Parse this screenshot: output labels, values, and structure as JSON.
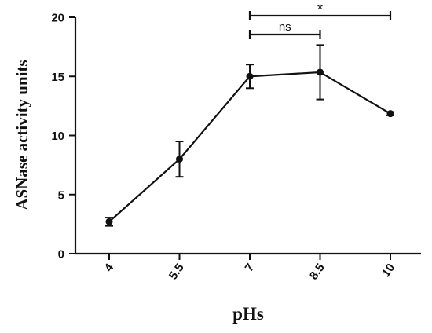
{
  "chart_data": {
    "type": "line",
    "title": "",
    "xlabel": "pHs",
    "ylabel": "ASNase activity units",
    "categories": [
      "4",
      "5.5",
      "7",
      "8.5",
      "10"
    ],
    "x": [
      4,
      5.5,
      7,
      8.5,
      10
    ],
    "ylim": [
      0,
      20
    ],
    "yticks": [
      "0",
      "5",
      "10",
      "15",
      "20"
    ],
    "series": [
      {
        "values": [
          2.7,
          8.0,
          15.0,
          15.35,
          11.85
        ],
        "error": [
          0.35,
          1.5,
          1.0,
          2.3,
          0.15
        ]
      }
    ],
    "annotations": [
      {
        "label": "*",
        "from": "7",
        "to": "10"
      },
      {
        "label": "ns",
        "from": "7",
        "to": "8.5"
      }
    ],
    "grid": false,
    "legend": "none",
    "colors": {
      "line": "#111111",
      "marker": "#111111"
    }
  }
}
